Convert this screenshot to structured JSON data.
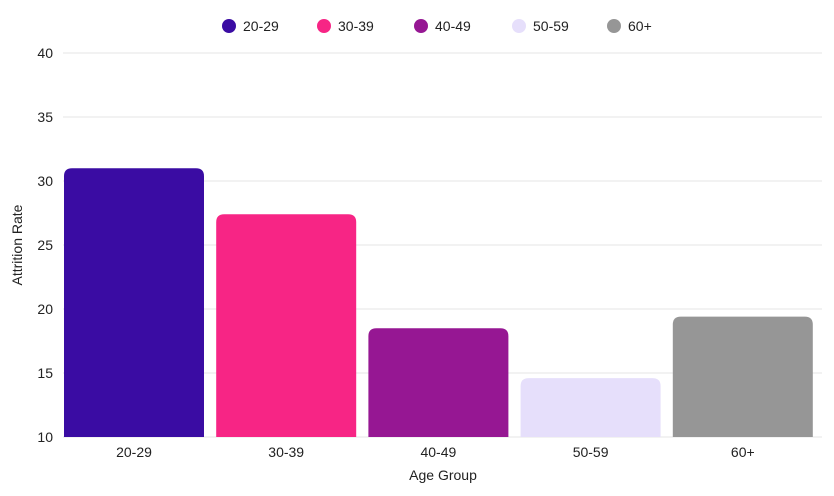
{
  "chart_data": {
    "type": "bar",
    "categories": [
      "20-29",
      "30-39",
      "40-49",
      "50-59",
      "60+"
    ],
    "values": [
      31,
      27.4,
      18.5,
      14.6,
      19.4
    ],
    "colors": [
      "#3a0ca3",
      "#f72585",
      "#961793",
      "#e6dffb",
      "#969696"
    ],
    "legend": [
      "20-29",
      "30-39",
      "40-49",
      "50-59",
      "60+"
    ],
    "legend_position": "top-center",
    "xlabel": "Age Group",
    "ylabel": "Attrition Rate",
    "ylim": [
      10,
      40
    ],
    "yticks": [
      10,
      15,
      20,
      25,
      30,
      35,
      40
    ],
    "grid": true
  }
}
